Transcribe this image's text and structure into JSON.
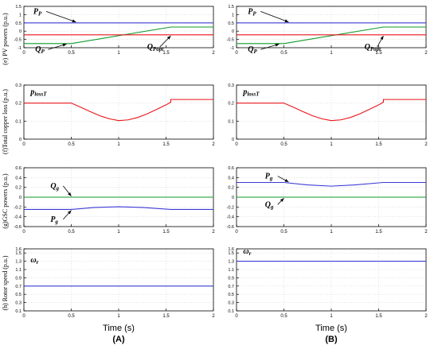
{
  "columns": [
    {
      "id": "(A)",
      "time_label": "Time (s)"
    },
    {
      "id": "(B)",
      "time_label": "Time (s)"
    }
  ],
  "row_labels": [
    "(e) PV powers (p.u.)",
    "(f)Total copper loss (p.u.)",
    "(g)GSC powers (p.u.)",
    "(h) Rotor speed (p.u.)"
  ],
  "colors": {
    "blue": "#3b3bd6",
    "red": "#e8141b",
    "green": "#0f9a2a",
    "axis": "#000000",
    "grid": "#d0d0d0"
  },
  "chart_data": [
    {
      "panel": "e-A",
      "type": "line",
      "xlim": [
        0,
        2
      ],
      "ylim": [
        -1,
        1.5
      ],
      "xticks": [
        0,
        0.5,
        1,
        1.5,
        2
      ],
      "xticklabels": [
        "0",
        "0.5",
        "1",
        "1.5",
        "2"
      ],
      "yticks": [
        -1,
        -0.5,
        0,
        0.5,
        1,
        1.5
      ],
      "yticklabels": [
        "-1",
        "-0.5",
        "0",
        "0.5",
        "1",
        "1.5"
      ],
      "series": [
        {
          "name": "Pp",
          "color": "blue",
          "x": [
            0,
            2
          ],
          "y": [
            0.5,
            0.5
          ]
        },
        {
          "name": "Qp",
          "color": "green",
          "x": [
            0,
            0.5,
            1.55,
            2
          ],
          "y": [
            -0.75,
            -0.75,
            0.25,
            0.25
          ]
        },
        {
          "name": "Qpopt",
          "color": "red",
          "x": [
            0,
            2
          ],
          "y": [
            -0.22,
            -0.22
          ]
        }
      ],
      "annotations": [
        {
          "text": "P",
          "sub": "P",
          "tx": 0.1,
          "ty": 1.05,
          "ax": 0.55,
          "ay": 0.55
        },
        {
          "text": "Q",
          "sub": "P",
          "tx": 0.12,
          "ty": -1.25,
          "ax": 0.45,
          "ay": -0.78
        },
        {
          "text": "Q",
          "sub": "Popt",
          "tx": 1.3,
          "ty": -1.1,
          "ax": 1.55,
          "ay": -0.28
        }
      ]
    },
    {
      "panel": "e-B",
      "type": "line",
      "xlim": [
        0,
        2
      ],
      "ylim": [
        -1,
        1.5
      ],
      "xticks": [
        0,
        0.5,
        1,
        1.5,
        2
      ],
      "xticklabels": [
        "0",
        "0.5",
        "1",
        "1.5",
        "2"
      ],
      "yticks": [
        -1,
        -0.5,
        0,
        0.5,
        1,
        1.5
      ],
      "yticklabels": [
        "-1",
        "-0.5",
        "0",
        "0.5",
        "1",
        "1.5"
      ],
      "series": [
        {
          "name": "Pp",
          "color": "blue",
          "x": [
            0,
            2
          ],
          "y": [
            0.5,
            0.5
          ]
        },
        {
          "name": "Qp",
          "color": "green",
          "x": [
            0,
            0.5,
            1.55,
            2
          ],
          "y": [
            -0.75,
            -0.75,
            0.25,
            0.25
          ]
        },
        {
          "name": "Qpopt",
          "color": "red",
          "x": [
            0,
            2
          ],
          "y": [
            -0.22,
            -0.22
          ]
        }
      ],
      "annotations": [
        {
          "text": "P",
          "sub": "P",
          "tx": 0.12,
          "ty": 1.05,
          "ax": 0.55,
          "ay": 0.55
        },
        {
          "text": "Q",
          "sub": "P",
          "tx": 0.12,
          "ty": -1.25,
          "ax": 0.45,
          "ay": -0.78
        },
        {
          "text": "Q",
          "sub": "Popt",
          "tx": 1.35,
          "ty": -1.1,
          "ax": 1.55,
          "ay": -0.28
        }
      ]
    },
    {
      "panel": "f-A",
      "type": "line",
      "xlim": [
        0,
        2
      ],
      "ylim": [
        0,
        0.3
      ],
      "xticks": [
        0,
        0.5,
        1,
        1.5,
        2
      ],
      "xticklabels": [
        "0",
        "0.5",
        "1",
        "1.5",
        "2"
      ],
      "yticks": [
        0,
        0.1,
        0.2,
        0.3
      ],
      "yticklabels": [
        "0",
        "0.1",
        "0.2",
        "0.3"
      ],
      "series": [
        {
          "name": "plossT",
          "color": "red",
          "x": [
            0,
            0.5,
            0.6,
            0.7,
            0.8,
            0.9,
            1.0,
            1.1,
            1.2,
            1.3,
            1.4,
            1.5,
            1.55,
            1.55,
            2
          ],
          "y": [
            0.2,
            0.2,
            0.177,
            0.153,
            0.13,
            0.113,
            0.103,
            0.107,
            0.12,
            0.14,
            0.165,
            0.19,
            0.205,
            0.22,
            0.22
          ]
        }
      ],
      "annotations": [
        {
          "text": "p",
          "sub": "lossT",
          "tx": 0.07,
          "ty": 0.25
        }
      ]
    },
    {
      "panel": "f-B",
      "type": "line",
      "xlim": [
        0,
        2
      ],
      "ylim": [
        0,
        0.3
      ],
      "xticks": [
        0,
        0.5,
        1,
        1.5,
        2
      ],
      "xticklabels": [
        "0",
        "0.5",
        "1",
        "1.5",
        "2"
      ],
      "yticks": [
        0,
        0.1,
        0.2,
        0.3
      ],
      "yticklabels": [
        "0",
        "0.1",
        "0.2",
        "0.3"
      ],
      "series": [
        {
          "name": "plossT",
          "color": "red",
          "x": [
            0,
            0.5,
            0.6,
            0.7,
            0.8,
            0.9,
            1.0,
            1.1,
            1.2,
            1.3,
            1.4,
            1.5,
            1.55,
            1.55,
            2
          ],
          "y": [
            0.2,
            0.2,
            0.177,
            0.153,
            0.13,
            0.113,
            0.103,
            0.107,
            0.12,
            0.14,
            0.165,
            0.19,
            0.205,
            0.22,
            0.22
          ]
        }
      ],
      "annotations": [
        {
          "text": "p",
          "sub": "lossT",
          "tx": 0.07,
          "ty": 0.25
        }
      ]
    },
    {
      "panel": "g-A",
      "type": "line",
      "xlim": [
        0,
        2
      ],
      "ylim": [
        -0.6,
        0.6
      ],
      "xticks": [
        0,
        0.5,
        1,
        1.5,
        2
      ],
      "xticklabels": [
        "0",
        "0.5",
        "1",
        "1.5",
        "2"
      ],
      "yticks": [
        -0.6,
        -0.4,
        -0.2,
        0,
        0.2,
        0.4,
        0.6
      ],
      "yticklabels": [
        "-0.6",
        "-0.4",
        "-0.2",
        "0",
        "0.2",
        "0.4",
        "0.6"
      ],
      "series": [
        {
          "name": "Qg",
          "color": "green",
          "x": [
            0,
            2
          ],
          "y": [
            0,
            0
          ]
        },
        {
          "name": "Pg",
          "color": "blue",
          "x": [
            0,
            0.5,
            0.75,
            1.0,
            1.25,
            1.55,
            2
          ],
          "y": [
            -0.25,
            -0.25,
            -0.21,
            -0.195,
            -0.21,
            -0.25,
            -0.25
          ]
        }
      ],
      "annotations": [
        {
          "text": "Q",
          "sub": "g",
          "tx": 0.28,
          "ty": 0.18,
          "ax": 0.5,
          "ay": 0.02
        },
        {
          "text": "P",
          "sub": "g",
          "tx": 0.28,
          "ty": -0.5,
          "ax": 0.5,
          "ay": -0.27
        }
      ]
    },
    {
      "panel": "g-B",
      "type": "line",
      "xlim": [
        0,
        2
      ],
      "ylim": [
        -0.6,
        0.6
      ],
      "xticks": [
        0,
        0.5,
        1,
        1.5,
        2
      ],
      "xticklabels": [
        "0",
        "0.5",
        "1",
        "1.5",
        "2"
      ],
      "yticks": [
        -0.6,
        -0.4,
        -0.2,
        0,
        0.2,
        0.4,
        0.6
      ],
      "yticklabels": [
        "-0.6",
        "-0.4",
        "-0.2",
        "0",
        "0.2",
        "0.4",
        "0.6"
      ],
      "series": [
        {
          "name": "Pg",
          "color": "blue",
          "x": [
            0,
            0.5,
            0.75,
            1.0,
            1.25,
            1.55,
            2
          ],
          "y": [
            0.3,
            0.3,
            0.25,
            0.225,
            0.25,
            0.3,
            0.3
          ]
        },
        {
          "name": "Qg",
          "color": "green",
          "x": [
            0,
            2
          ],
          "y": [
            0,
            0
          ]
        }
      ],
      "annotations": [
        {
          "text": "P",
          "sub": "g",
          "tx": 0.3,
          "ty": 0.38,
          "ax": 0.55,
          "ay": 0.31
        },
        {
          "text": "Q",
          "sub": "g",
          "tx": 0.3,
          "ty": -0.2,
          "ax": 0.5,
          "ay": -0.02
        }
      ]
    },
    {
      "panel": "h-A",
      "type": "line",
      "xlim": [
        0,
        2
      ],
      "ylim": [
        0.1,
        1.6
      ],
      "xticks": [
        0,
        0.5,
        1,
        1.5,
        2
      ],
      "xticklabels": [
        "0",
        "0.5",
        "1",
        "1.5",
        "2"
      ],
      "yticks": [
        0.1,
        0.3,
        0.5,
        0.7,
        0.9,
        1.1,
        1.3,
        1.5,
        1.6
      ],
      "yticklabels": [
        "0.1",
        "0.3",
        "0.5",
        "0.7",
        "0.9",
        "1.1",
        "1.3",
        "1.5",
        "1.6"
      ],
      "series": [
        {
          "name": "wr",
          "color": "blue",
          "x": [
            0,
            2
          ],
          "y": [
            0.7,
            0.7
          ]
        }
      ],
      "annotations": [
        {
          "text": "ω",
          "sub": "r",
          "tx": 0.07,
          "ty": 1.27
        }
      ]
    },
    {
      "panel": "h-B",
      "type": "line",
      "xlim": [
        0,
        2
      ],
      "ylim": [
        0.1,
        1.6
      ],
      "xticks": [
        0,
        0.5,
        1,
        1.5,
        2
      ],
      "xticklabels": [
        "0",
        "0.5",
        "1",
        "1.5",
        "2"
      ],
      "yticks": [
        0.1,
        0.3,
        0.5,
        0.7,
        0.9,
        1.1,
        1.3,
        1.5,
        1.6
      ],
      "yticklabels": [
        "0.1",
        "0.3",
        "0.5",
        "0.7",
        "0.9",
        "1.1",
        "1.3",
        "1.5",
        "1.6"
      ],
      "series": [
        {
          "name": "wr",
          "color": "blue",
          "x": [
            0,
            2
          ],
          "y": [
            1.3,
            1.3
          ]
        }
      ],
      "annotations": [
        {
          "text": "ω",
          "sub": "r",
          "tx": 0.07,
          "ty": 1.48
        }
      ]
    }
  ]
}
